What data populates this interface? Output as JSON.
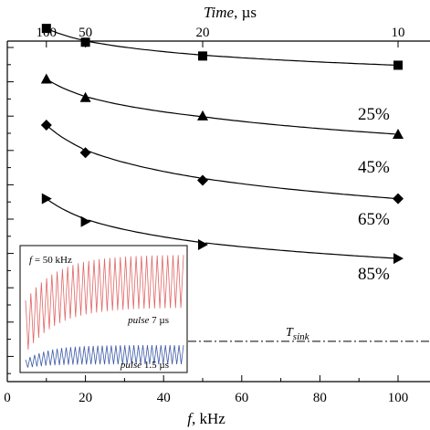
{
  "chart_data": [
    {
      "type": "line",
      "title": "",
      "xlabel": {
        "var": "f",
        "unit": ", kHz"
      },
      "x2label": {
        "var": "Time",
        "unit": ", µs"
      },
      "ylabel": "",
      "xlim": [
        0,
        100
      ],
      "x_ticks": [
        "0",
        "20",
        "40",
        "60",
        "80",
        "100"
      ],
      "x2_ticks": [
        {
          "label": "100",
          "at_f": 10
        },
        {
          "label": "50",
          "at_f": 20
        },
        {
          "label": "20",
          "at_f": 50
        },
        {
          "label": "10",
          "at_f": 100
        }
      ],
      "y_ticks_labeled": false,
      "markers": [
        "square",
        "triangle-up",
        "diamond",
        "triangle-right"
      ],
      "x": [
        10,
        20,
        50,
        100
      ],
      "series": [
        {
          "name": "25%",
          "values": [
            0.97,
            0.94,
            0.91,
            0.89
          ]
        },
        {
          "name": "45%",
          "values": [
            0.86,
            0.82,
            0.78,
            0.74
          ]
        },
        {
          "name": "65%",
          "values": [
            0.76,
            0.7,
            0.64,
            0.6
          ]
        },
        {
          "name": "85%",
          "values": [
            0.6,
            0.55,
            0.5,
            0.47
          ]
        }
      ],
      "ylim": [
        0,
        1.05
      ],
      "reference_line": {
        "label": "T",
        "subscript": "sink",
        "value": 0.29
      }
    },
    {
      "type": "line",
      "inset": true,
      "annotation": "f = 50 kHz",
      "series": [
        {
          "name": "pulse 7 µs",
          "color": "#e06666"
        },
        {
          "name": "pulse 1.5 µs",
          "color": "#3c5aa6"
        }
      ]
    }
  ]
}
